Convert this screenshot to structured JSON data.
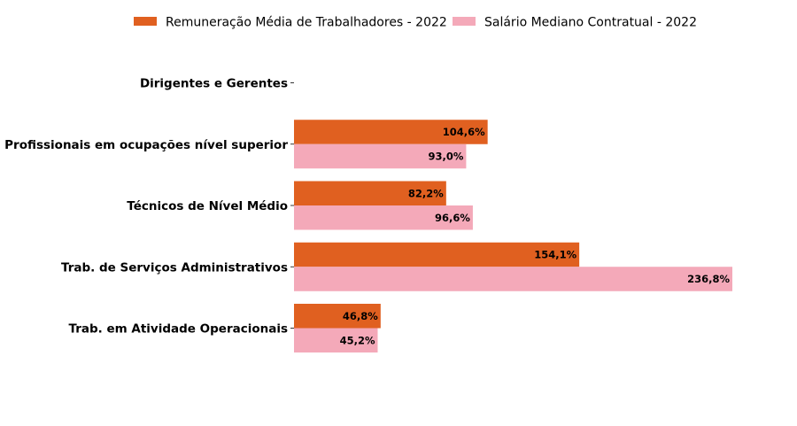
{
  "chart_data": {
    "type": "bar",
    "orientation": "horizontal",
    "categories": [
      "Dirigentes e Gerentes",
      "Profissionais em ocupações nível superior",
      "Técnicos de Nível Médio",
      "Trab. de Serviços Administrativos",
      "Trab. em Atividade Operacionais"
    ],
    "series": [
      {
        "name": "Remuneração Média de Trabalhadores - 2022",
        "color": "#e06020",
        "values": [
          null,
          104.6,
          82.2,
          154.1,
          46.8
        ],
        "labels": [
          "",
          "104,6%",
          "82,2%",
          "154,1%",
          "46,8%"
        ]
      },
      {
        "name": "Salário Mediano Contratual - 2022",
        "color": "#f4a9b9",
        "values": [
          null,
          93.0,
          96.6,
          236.8,
          45.2
        ],
        "labels": [
          "",
          "93,0%",
          "96,6%",
          "236,8%",
          "45,2%"
        ]
      }
    ],
    "xlim": [
      0,
      236.8
    ],
    "legend_position": "top",
    "grid": false,
    "title": "",
    "xlabel": "",
    "ylabel": ""
  }
}
